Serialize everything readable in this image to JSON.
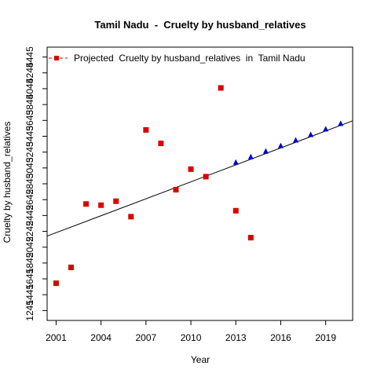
{
  "chart_data": {
    "type": "scatter",
    "title": "Tamil Nadu  -  Cruelty by husband_relatives",
    "xlabel": "Year",
    "ylabel": "Cruelty by husband_relatives",
    "xlim": [
      2000.4,
      2020.8
    ],
    "ylim": [
      1120,
      4570
    ],
    "x_ticks": [
      2001,
      2004,
      2007,
      2010,
      2013,
      2016,
      2019
    ],
    "y_ticks": [
      1245,
      1445,
      1645,
      1845,
      2045,
      2245,
      2445,
      2645,
      2845,
      3045,
      3245,
      3445,
      3645,
      3845,
      4045,
      4245,
      4445
    ],
    "legend": {
      "label": "Projected  Cruelty by husband_relatives  in  Tamil Nadu",
      "position": "top-left"
    },
    "series": [
      {
        "kind": "actual",
        "marker": "square",
        "color": "#dd0000",
        "points": [
          {
            "x": 2001,
            "y": 1590
          },
          {
            "x": 2002,
            "y": 1790
          },
          {
            "x": 2003,
            "y": 2590
          },
          {
            "x": 2004,
            "y": 2575
          },
          {
            "x": 2005,
            "y": 2625
          },
          {
            "x": 2006,
            "y": 2430
          },
          {
            "x": 2007,
            "y": 3525
          },
          {
            "x": 2008,
            "y": 3355
          },
          {
            "x": 2009,
            "y": 2770
          },
          {
            "x": 2010,
            "y": 3030
          },
          {
            "x": 2011,
            "y": 2935
          },
          {
            "x": 2012,
            "y": 4055
          },
          {
            "x": 2013,
            "y": 2505
          },
          {
            "x": 2014,
            "y": 2165
          }
        ]
      },
      {
        "kind": "projected",
        "marker": "triangle",
        "color": "#0000cc",
        "points": [
          {
            "x": 2013,
            "y": 3115
          },
          {
            "x": 2014,
            "y": 3185
          },
          {
            "x": 2015,
            "y": 3255
          },
          {
            "x": 2016,
            "y": 3325
          },
          {
            "x": 2017,
            "y": 3395
          },
          {
            "x": 2018,
            "y": 3465
          },
          {
            "x": 2019,
            "y": 3535
          },
          {
            "x": 2020,
            "y": 3605
          }
        ]
      }
    ],
    "trend_line": {
      "color": "#000000",
      "from": {
        "x": 2000.4,
        "y": 2185
      },
      "to": {
        "x": 2020.8,
        "y": 3640
      }
    }
  }
}
